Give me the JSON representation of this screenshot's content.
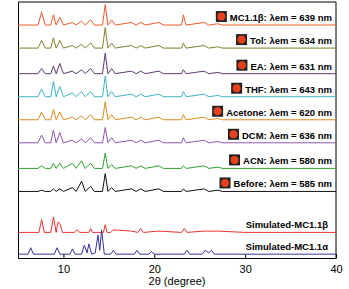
{
  "chart_data": {
    "type": "line",
    "x_label": "2θ (degree)",
    "xlim": [
      5,
      40
    ],
    "xticks": [
      10,
      20,
      30,
      40
    ],
    "ylim": [
      0,
      100
    ],
    "yticks": [],
    "tick_labels": "x",
    "grid": false,
    "series": [
      {
        "name": "MC1.1β: λem = 639 nm",
        "color": "#f05a28",
        "x": [
          5,
          7.2,
          7.6,
          8.0,
          8.6,
          8.9,
          9.2,
          9.6,
          10.0,
          11.0,
          11.4,
          12.0,
          12.4,
          13.0,
          13.4,
          14.3,
          14.6,
          14.9,
          15.3,
          15.7,
          17.5,
          18.0,
          18.5,
          19.0,
          20.5,
          21.0,
          23.0,
          23.2,
          23.5,
          25.5,
          26.0,
          27.0,
          27.5,
          30,
          35,
          40
        ],
        "values": [
          91,
          91,
          96,
          91,
          91,
          95,
          91,
          94,
          91,
          92,
          91,
          92.5,
          91,
          93,
          91,
          91,
          99,
          91,
          93,
          91,
          92,
          91,
          92,
          91,
          92,
          91,
          91,
          95,
          91,
          92,
          91,
          91.5,
          91,
          91,
          91,
          91
        ]
      },
      {
        "name": "Tol: λem = 634 nm",
        "color": "#7f7f2a",
        "x": [
          5,
          7.2,
          7.6,
          8.0,
          8.6,
          8.9,
          9.2,
          9.6,
          10.0,
          11.0,
          11.4,
          12.0,
          12.4,
          13.0,
          13.4,
          14.3,
          14.6,
          14.9,
          15.3,
          15.7,
          17.5,
          18.0,
          18.5,
          19.0,
          20.5,
          21.0,
          23.0,
          23.2,
          23.5,
          25.5,
          26.0,
          27.0,
          27.5,
          30,
          35,
          40
        ],
        "values": [
          82,
          82,
          85,
          82,
          82,
          86,
          82,
          85,
          82,
          83,
          82,
          83.5,
          82,
          84,
          82,
          82,
          90,
          82,
          84,
          82,
          83,
          82,
          83,
          82,
          83,
          82,
          82,
          84,
          82,
          83,
          82,
          82.5,
          82,
          82,
          82,
          82
        ]
      },
      {
        "name": "EA: λem = 631 nm",
        "color": "#5b3a6e",
        "x": [
          5,
          7.2,
          7.6,
          8.0,
          8.6,
          8.9,
          9.2,
          9.6,
          10.0,
          11.0,
          11.4,
          12.0,
          12.4,
          13.0,
          13.4,
          14.3,
          14.6,
          14.9,
          15.3,
          15.7,
          17.5,
          18.0,
          18.5,
          19.0,
          20.5,
          21.0,
          23.0,
          23.2,
          23.5,
          25.5,
          26.0,
          27.0,
          27.5,
          30,
          35,
          40
        ],
        "values": [
          72,
          72,
          74,
          72,
          72,
          75,
          72,
          76,
          72,
          73,
          72,
          73.5,
          72,
          74,
          72,
          72,
          80,
          72,
          74,
          72,
          73,
          72,
          73,
          72,
          73,
          72,
          72,
          73.5,
          72,
          73,
          72,
          72.5,
          72,
          72,
          72,
          72
        ]
      },
      {
        "name": "THF: λem = 643 nm",
        "color": "#3fb4c6",
        "x": [
          5,
          7.2,
          7.6,
          8.0,
          8.6,
          8.9,
          9.2,
          9.6,
          10.0,
          11.0,
          11.4,
          12.0,
          12.4,
          13.0,
          13.4,
          14.3,
          14.6,
          14.9,
          15.3,
          15.7,
          17.5,
          18.0,
          18.5,
          19.0,
          20.5,
          21.0,
          23.0,
          23.2,
          23.5,
          25.5,
          26.0,
          27.0,
          27.5,
          30,
          35,
          40
        ],
        "values": [
          63,
          63,
          66,
          63,
          63,
          69,
          63,
          67,
          63,
          64.5,
          63,
          65,
          63,
          65,
          63,
          63,
          71,
          63,
          65,
          63,
          64,
          63,
          64,
          63,
          64,
          63,
          63,
          65,
          63,
          64,
          63,
          63.5,
          63,
          63,
          63,
          63
        ]
      },
      {
        "name": "Acetone: λem = 620 nm",
        "color": "#dc8b1c",
        "x": [
          5,
          7.2,
          7.6,
          8.0,
          8.6,
          8.9,
          9.2,
          9.6,
          10.0,
          11.0,
          11.4,
          12.0,
          12.4,
          13.0,
          13.4,
          14.3,
          14.6,
          14.9,
          15.3,
          15.7,
          17.5,
          18.0,
          18.5,
          19.0,
          20.5,
          21.0,
          23.0,
          23.2,
          23.5,
          25.5,
          26.0,
          27.0,
          27.5,
          30,
          35,
          40
        ],
        "values": [
          54,
          54,
          57,
          54,
          54,
          58,
          54,
          57,
          54,
          55,
          54,
          55.5,
          54,
          56,
          54,
          54,
          61,
          54,
          56,
          54,
          55,
          54,
          55,
          54,
          55,
          54,
          54,
          56,
          54,
          55,
          54,
          54.5,
          54,
          54,
          54,
          54
        ]
      },
      {
        "name": "DCM: λem = 636 nm",
        "color": "#8e57b0",
        "x": [
          5,
          7.2,
          7.6,
          8.0,
          8.6,
          8.9,
          9.2,
          9.6,
          10.0,
          11.0,
          11.4,
          12.0,
          12.4,
          13.0,
          13.4,
          14.3,
          14.6,
          14.9,
          15.3,
          15.7,
          17.5,
          18.0,
          18.5,
          19.0,
          20.5,
          21.0,
          23.0,
          23.2,
          23.5,
          25.5,
          26.0,
          27.0,
          27.5,
          30,
          35,
          40
        ],
        "values": [
          45,
          45,
          48,
          45,
          45,
          50,
          45,
          49,
          45,
          46,
          45,
          46.5,
          45,
          47,
          45,
          45,
          51,
          45,
          47,
          45,
          46,
          45,
          46,
          45,
          46,
          45,
          45,
          47,
          45,
          46,
          45,
          45.5,
          45,
          45,
          45,
          45
        ]
      },
      {
        "name": "ACN: λem = 580 nm",
        "color": "#2ca02c",
        "x": [
          5,
          7.2,
          7.6,
          8.0,
          8.6,
          8.9,
          9.2,
          9.6,
          10.0,
          11.0,
          11.4,
          12.0,
          12.4,
          13.0,
          13.4,
          14.3,
          14.6,
          14.9,
          15.3,
          15.7,
          17.5,
          18.0,
          18.5,
          19.0,
          20.5,
          21.0,
          23.0,
          23.2,
          23.5,
          25.5,
          26.0,
          27.0,
          27.5,
          30,
          35,
          40
        ],
        "values": [
          35,
          35,
          36,
          35,
          35,
          37,
          35,
          37,
          35,
          37,
          35,
          38,
          35,
          37,
          35,
          35,
          41,
          35,
          36.5,
          35,
          36,
          35,
          36,
          35,
          36,
          35,
          35,
          36,
          35,
          36,
          35,
          35.5,
          35,
          35,
          35,
          35
        ]
      },
      {
        "name": "Before: λem = 585 nm",
        "color": "#111111",
        "x": [
          5,
          7.2,
          7.6,
          8.0,
          8.6,
          8.9,
          9.2,
          9.6,
          10.0,
          11.0,
          11.4,
          12.0,
          12.4,
          13.0,
          13.4,
          14.3,
          14.6,
          14.9,
          15.3,
          15.7,
          17.5,
          18.0,
          18.5,
          19.0,
          20.5,
          21.0,
          23.0,
          23.2,
          23.5,
          25.5,
          26.0,
          27.0,
          27.5,
          30,
          35,
          40
        ],
        "values": [
          26,
          26,
          26.5,
          26,
          26,
          27,
          26,
          27,
          26,
          27.5,
          26,
          30,
          26,
          28,
          26,
          26,
          33,
          26,
          27.5,
          26,
          27,
          26,
          27,
          26,
          27,
          26,
          26,
          27,
          26,
          27,
          26,
          26.5,
          26,
          26,
          26,
          26
        ]
      },
      {
        "name": "Simulated-MC1.1β",
        "color": "#e8312f",
        "x": [
          5,
          7.3,
          7.6,
          7.9,
          8.6,
          8.9,
          9.2,
          9.4,
          9.6,
          9.9,
          11.2,
          11.5,
          11.8,
          12.8,
          13.0,
          13.2,
          14.4,
          14.6,
          14.8,
          15.2,
          15.5,
          17.5,
          18.2,
          18.5,
          18.8,
          20.5,
          23.0,
          23.3,
          23.6,
          25.5,
          27,
          30,
          35,
          40
        ],
        "values": [
          10,
          10,
          15,
          10,
          10,
          16,
          10,
          14,
          13.5,
          10,
          10,
          11,
          10,
          10,
          11.5,
          10,
          10,
          13,
          10,
          10,
          11,
          10.5,
          10,
          11.5,
          10,
          10.5,
          10,
          11.5,
          10,
          10.5,
          10.5,
          10,
          10,
          10
        ]
      },
      {
        "name": "Simulated-MC1.1α",
        "color": "#33339c",
        "x": [
          5,
          6.1,
          6.4,
          6.7,
          9.0,
          9.3,
          9.6,
          10.7,
          11.0,
          11.3,
          12.0,
          12.3,
          12.6,
          12.8,
          13.1,
          13.5,
          13.8,
          14.0,
          14.2,
          14.5,
          15.2,
          15.5,
          15.8,
          17.8,
          18.1,
          18.4,
          19.4,
          19.7,
          20.0,
          23.3,
          23.6,
          23.9,
          25.3,
          25.6,
          26.0,
          26.3,
          26.6,
          30,
          35,
          40
        ],
        "values": [
          1.5,
          1.5,
          4,
          1.5,
          1.5,
          4,
          1.5,
          1.5,
          3.5,
          1.5,
          1.5,
          5,
          2,
          5.5,
          1.5,
          2,
          9,
          3,
          11,
          1.5,
          1.5,
          3,
          1.5,
          1.5,
          3,
          1.5,
          1.5,
          2.5,
          1.5,
          1.5,
          3,
          1.5,
          1.5,
          3,
          2,
          3,
          1.5,
          1.5,
          1.5,
          1.5
        ]
      }
    ]
  }
}
